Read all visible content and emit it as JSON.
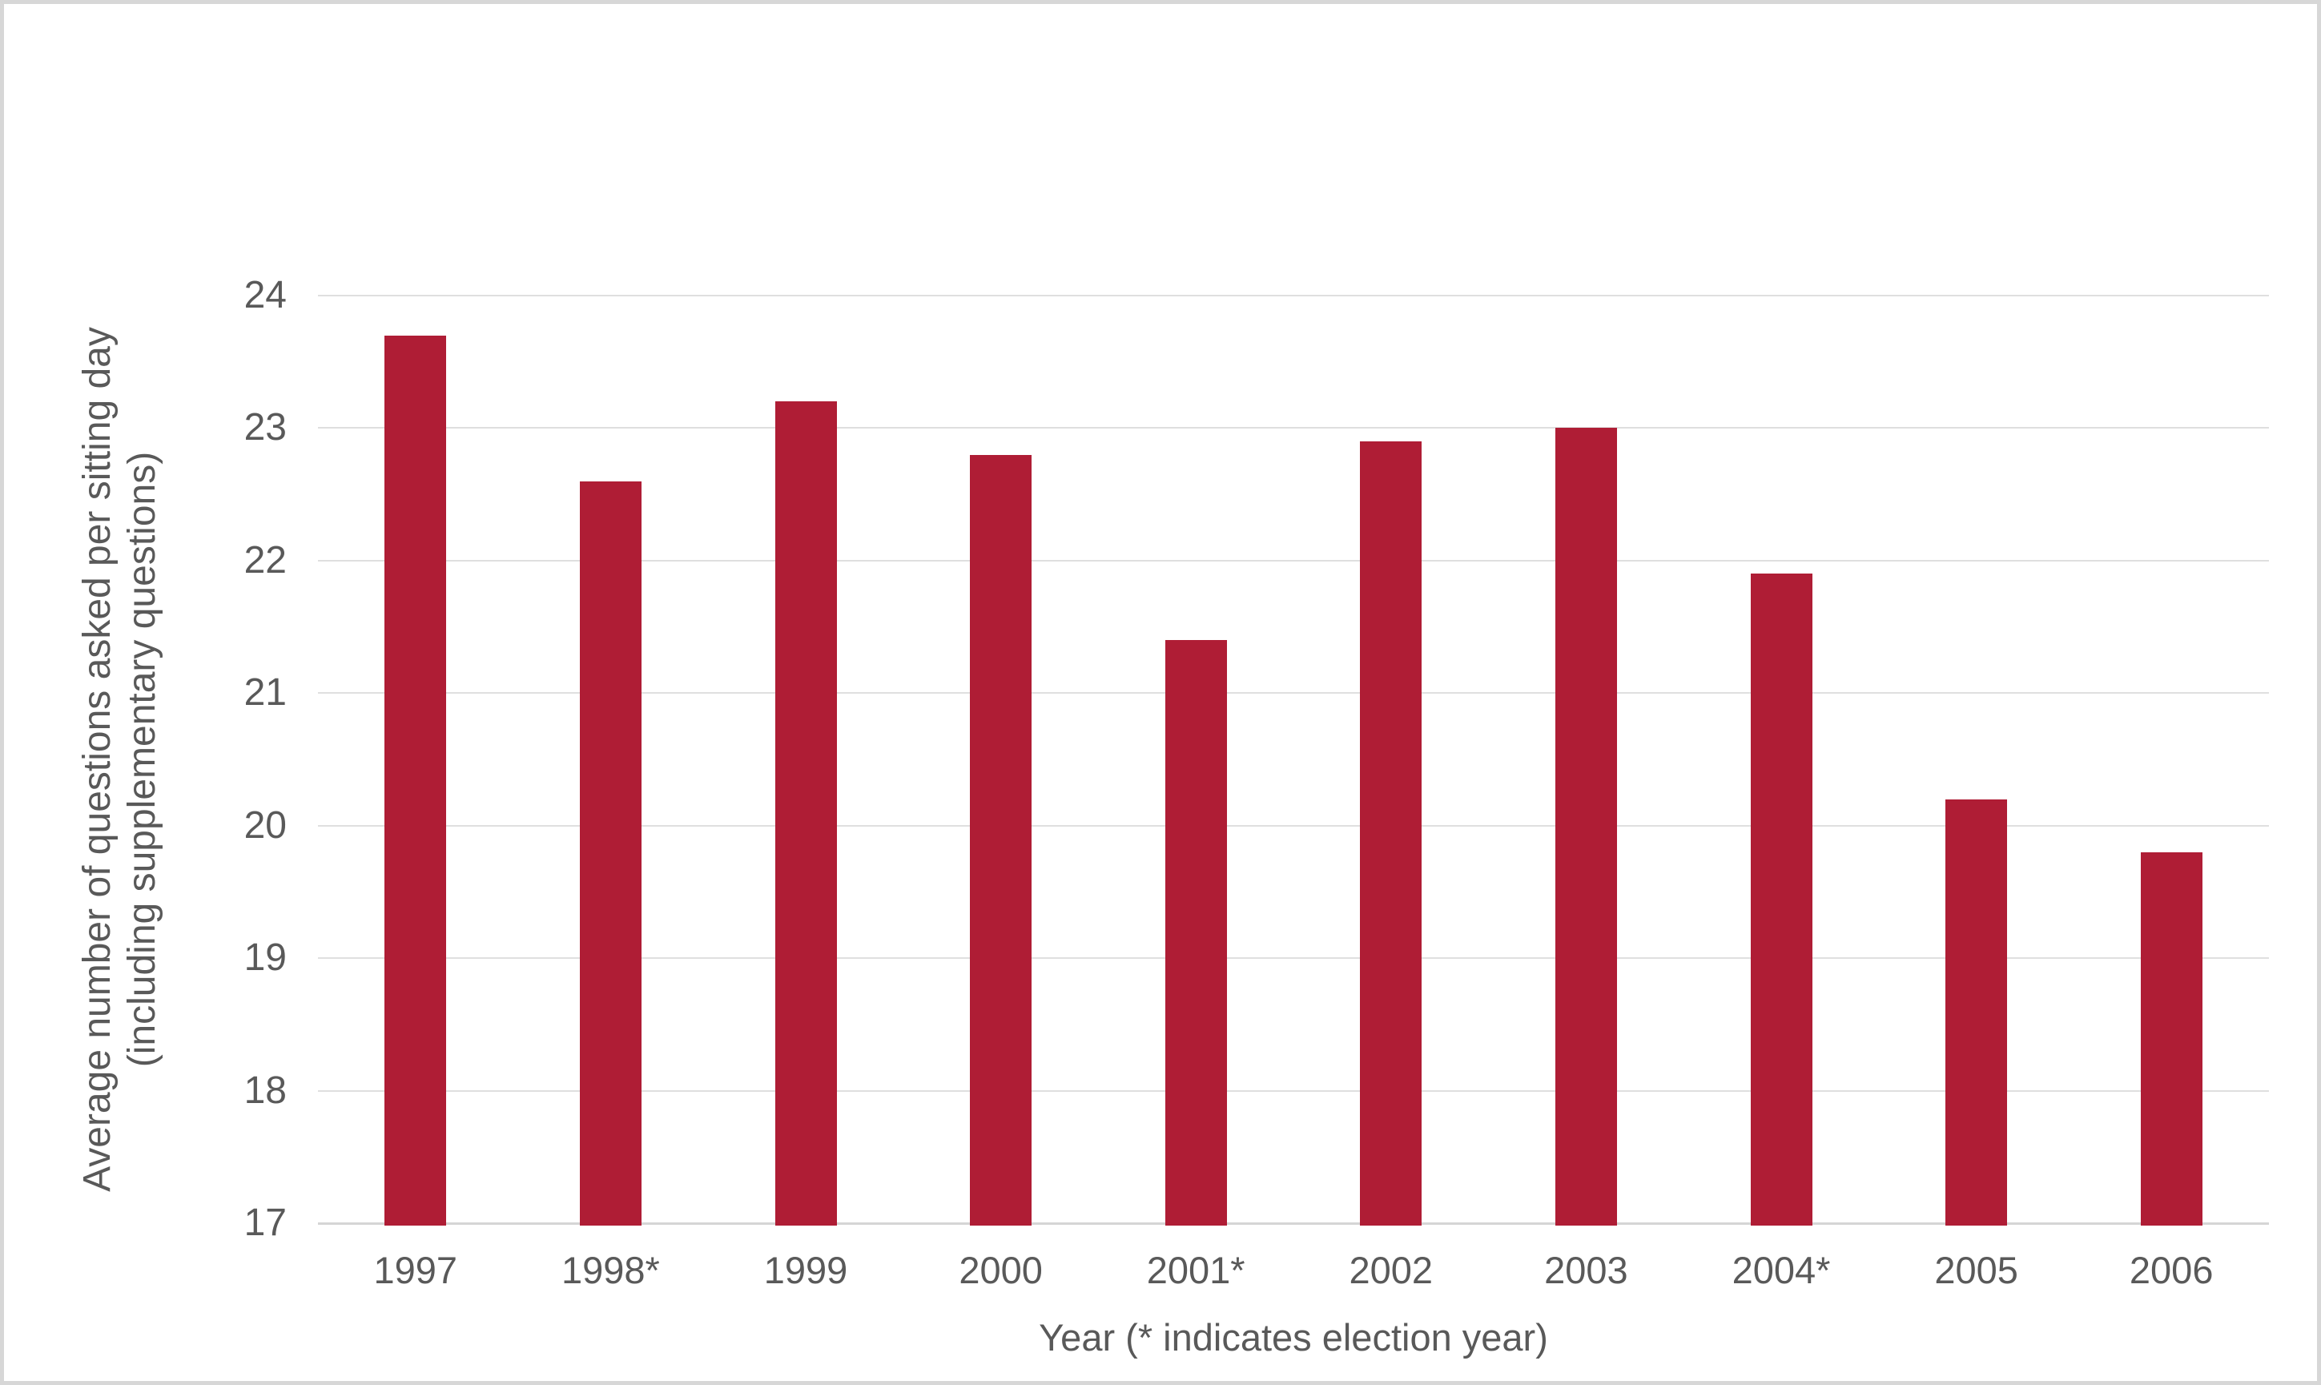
{
  "chart_data": {
    "type": "bar",
    "title": "",
    "categories": [
      "1997",
      "1998*",
      "1999",
      "2000",
      "2001*",
      "2002",
      "2003",
      "2004*",
      "2005",
      "2006"
    ],
    "values": [
      23.7,
      22.6,
      23.2,
      22.8,
      21.4,
      22.9,
      23.0,
      21.9,
      20.2,
      19.8
    ],
    "xlabel": "Year (* indicates election year)",
    "ylabel_line1": "Average number of questions asked per sitting day",
    "ylabel_line2": "(including supplementary questions)",
    "ylim": [
      17,
      24
    ],
    "yticks": [
      17,
      18,
      19,
      20,
      21,
      22,
      23,
      24
    ],
    "grid": true,
    "legend": false,
    "colors": {
      "bar": "#AF1D35",
      "gridline": "#DFDFDF",
      "axis_line": "#D5D5D5",
      "text": "#595959",
      "frame_border": "#D7D7D7",
      "background": "#FFFFFF"
    }
  }
}
